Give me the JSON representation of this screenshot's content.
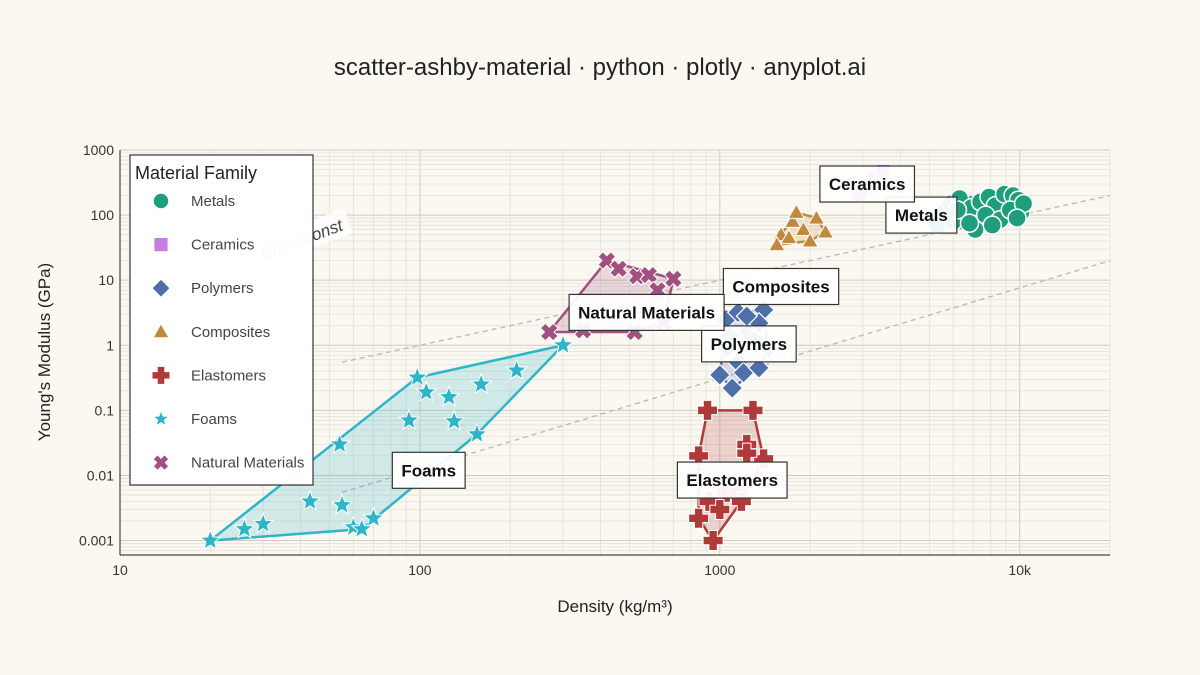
{
  "page": {
    "title": "scatter-ashby-material · python · plotly · anyplot.ai"
  },
  "chart_data": {
    "type": "scatter",
    "title": "scatter-ashby-material · python · plotly · anyplot.ai",
    "xlabel": "Density (kg/m³)",
    "ylabel": "Young's Modulus (GPa)",
    "xscale": "log",
    "yscale": "log",
    "xlim": [
      10,
      20000
    ],
    "ylim": [
      0.0006,
      1000
    ],
    "x_ticks": [
      {
        "value": 10,
        "label": "10"
      },
      {
        "value": 100,
        "label": "100"
      },
      {
        "value": 1000,
        "label": "1000"
      },
      {
        "value": 10000,
        "label": "10k"
      }
    ],
    "y_ticks": [
      {
        "value": 0.001,
        "label": "0.001"
      },
      {
        "value": 0.01,
        "label": "0.01"
      },
      {
        "value": 0.1,
        "label": "0.1"
      },
      {
        "value": 1,
        "label": "1"
      },
      {
        "value": 10,
        "label": "10"
      },
      {
        "value": 100,
        "label": "100"
      },
      {
        "value": 1000,
        "label": "1000"
      }
    ],
    "grid": true,
    "legend": {
      "title": "Material Family",
      "position": "top-left"
    },
    "reference_lines": {
      "label": "E/ρ = const",
      "style": "dashed",
      "color": "#BBBBBB",
      "lines": [
        {
          "from": [
            55,
            0.55
          ],
          "to": [
            20000,
            200
          ]
        },
        {
          "from": [
            55,
            0.0055
          ],
          "to": [
            20000,
            20
          ]
        }
      ]
    },
    "series": [
      {
        "name": "Metals",
        "marker": "circle",
        "color": "#1F9E7B",
        "label_at": [
          4700,
          100
        ],
        "points": [
          [
            5600,
            110
          ],
          [
            5900,
            150
          ],
          [
            6300,
            180
          ],
          [
            6600,
            95
          ],
          [
            6900,
            130
          ],
          [
            7400,
            160
          ],
          [
            7900,
            190
          ],
          [
            8300,
            140
          ],
          [
            8900,
            210
          ],
          [
            9500,
            200
          ],
          [
            9900,
            170
          ],
          [
            10100,
            110
          ],
          [
            5300,
            70
          ],
          [
            6000,
            80
          ],
          [
            7100,
            60
          ],
          [
            7700,
            100
          ],
          [
            8600,
            85
          ],
          [
            9300,
            120
          ],
          [
            6200,
            120
          ],
          [
            10300,
            150
          ],
          [
            8100,
            70
          ],
          [
            6800,
            75
          ],
          [
            9800,
            90
          ]
        ]
      },
      {
        "name": "Ceramics",
        "marker": "square",
        "color": "#C77CE0",
        "label_at": [
          3100,
          300
        ],
        "points": [
          [
            2900,
            200
          ],
          [
            3100,
            300
          ],
          [
            3300,
            390
          ],
          [
            3500,
            470
          ],
          [
            3900,
            280
          ]
        ]
      },
      {
        "name": "Polymers",
        "marker": "diamond",
        "color": "#4F6FAA",
        "label_at": [
          1250,
          1.05
        ],
        "points": [
          [
            1050,
            2.5
          ],
          [
            1150,
            3.2
          ],
          [
            1400,
            3.5
          ],
          [
            1250,
            1.6
          ],
          [
            1350,
            2.2
          ],
          [
            1050,
            0.9
          ],
          [
            1150,
            0.55
          ],
          [
            1300,
            1.2
          ],
          [
            1000,
            0.35
          ],
          [
            1100,
            0.22
          ],
          [
            1200,
            0.38
          ],
          [
            1350,
            0.45
          ],
          [
            1450,
            0.9
          ],
          [
            1080,
            1.4
          ],
          [
            1230,
            2.8
          ]
        ]
      },
      {
        "name": "Composites",
        "marker": "triangle-up",
        "color": "#C08A3E",
        "label_at": [
          1600,
          8
        ],
        "points": [
          [
            1600,
            50
          ],
          [
            1750,
            80
          ],
          [
            1900,
            60
          ],
          [
            2000,
            40
          ],
          [
            1550,
            35
          ],
          [
            2100,
            90
          ],
          [
            1800,
            110
          ],
          [
            2250,
            55
          ],
          [
            1700,
            45
          ]
        ]
      },
      {
        "name": "Elastomers",
        "marker": "cross",
        "color": "#B03A3A",
        "label_at": [
          1100,
          0.0085
        ],
        "points": [
          [
            910,
            0.1
          ],
          [
            1290,
            0.1
          ],
          [
            1230,
            0.03
          ],
          [
            1400,
            0.018
          ],
          [
            850,
            0.02
          ],
          [
            920,
            0.004
          ],
          [
            1050,
            0.0055
          ],
          [
            1000,
            0.003
          ],
          [
            850,
            0.0022
          ],
          [
            950,
            0.001
          ],
          [
            1150,
            0.0055
          ],
          [
            1180,
            0.004
          ],
          [
            1230,
            0.022
          ]
        ]
      },
      {
        "name": "Foams",
        "marker": "star",
        "color": "#2FB5C7",
        "label_at": [
          107,
          0.012
        ],
        "points": [
          [
            20,
            0.001
          ],
          [
            26,
            0.0015
          ],
          [
            30,
            0.0018
          ],
          [
            43,
            0.004
          ],
          [
            54,
            0.03
          ],
          [
            55,
            0.0035
          ],
          [
            60,
            0.0016
          ],
          [
            70,
            0.0022
          ],
          [
            92,
            0.07
          ],
          [
            98,
            0.32
          ],
          [
            105,
            0.19
          ],
          [
            125,
            0.16
          ],
          [
            130,
            0.068
          ],
          [
            155,
            0.043
          ],
          [
            160,
            0.25
          ],
          [
            210,
            0.41
          ],
          [
            300,
            1.0
          ],
          [
            64,
            0.0015
          ]
        ]
      },
      {
        "name": "Natural Materials",
        "marker": "x",
        "color": "#A1507F",
        "label_at": [
          570,
          3.2
        ],
        "points": [
          [
            270,
            1.6
          ],
          [
            420,
            20
          ],
          [
            520,
            1.6
          ],
          [
            530,
            11.5
          ],
          [
            700,
            10.5
          ],
          [
            650,
            2.2
          ],
          [
            460,
            15
          ],
          [
            580,
            12
          ],
          [
            620,
            7
          ],
          [
            350,
            1.7
          ]
        ]
      }
    ]
  }
}
